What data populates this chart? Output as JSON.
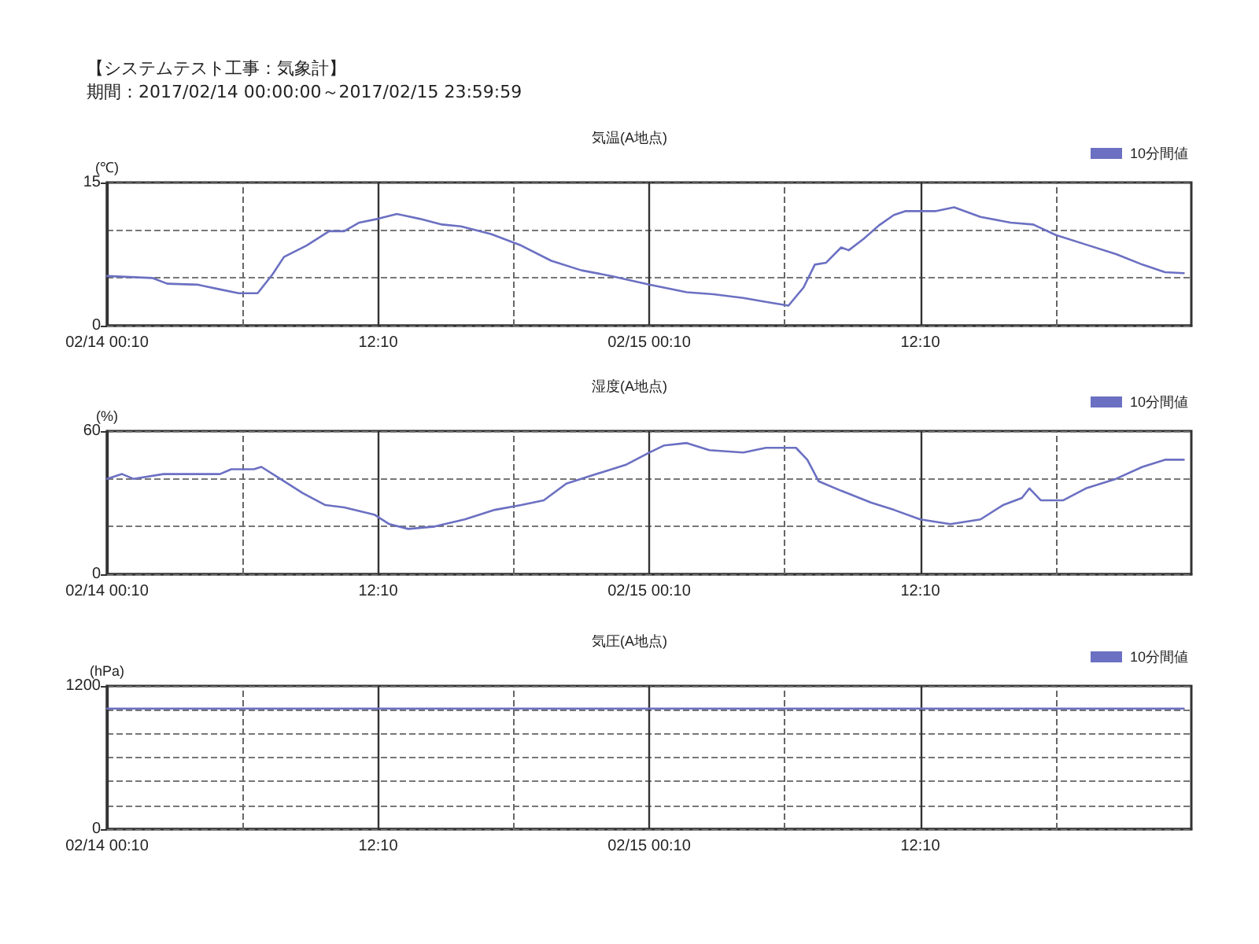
{
  "chart_data": [
    {
      "type": "line",
      "title": "気温(A地点)",
      "ylabel": "(℃)",
      "annotations": [
        "【システムテスト工事：気象計】",
        "期間：2017/02/14 00:00:00～2017/02/15 23:59:59"
      ],
      "xlim": [
        "2017-02-14T00:10",
        "2017-02-16T00:10"
      ],
      "xticks": [
        {
          "value": "2017-02-14T00:10",
          "label": "02/14 00:10"
        },
        {
          "value": "2017-02-14T06:10",
          "label": null
        },
        {
          "value": "2017-02-14T12:10",
          "label": "12:10"
        },
        {
          "value": "2017-02-14T18:10",
          "label": null
        },
        {
          "value": "2017-02-15T00:10",
          "label": "02/15 00:10"
        },
        {
          "value": "2017-02-15T06:10",
          "label": null
        },
        {
          "value": "2017-02-15T12:10",
          "label": "12:10"
        },
        {
          "value": "2017-02-15T18:10",
          "label": null
        }
      ],
      "ylim": [
        0,
        15
      ],
      "yticks": [
        0,
        {
          "value": 5,
          "label": null
        },
        {
          "value": 10,
          "label": null
        },
        15
      ],
      "grid": true,
      "legend": "top right",
      "marker": "none",
      "line_style": "solid",
      "series": [
        {
          "name": "10分間値",
          "color": "#6b70c2",
          "x": [
            "2017-02-14T00:10",
            "2017-02-14T02:10",
            "2017-02-14T02:50",
            "2017-02-14T04:10",
            "2017-02-14T05:10",
            "2017-02-14T06:00",
            "2017-02-14T06:50",
            "2017-02-14T07:30",
            "2017-02-14T08:00",
            "2017-02-14T09:00",
            "2017-02-14T10:00",
            "2017-02-14T10:40",
            "2017-02-14T11:20",
            "2017-02-14T12:10",
            "2017-02-14T13:00",
            "2017-02-14T14:00",
            "2017-02-14T15:00",
            "2017-02-14T15:50",
            "2017-02-14T17:10",
            "2017-02-14T18:30",
            "2017-02-14T19:50",
            "2017-02-14T21:10",
            "2017-02-14T22:30",
            "2017-02-15T00:10",
            "2017-02-15T01:50",
            "2017-02-15T03:00",
            "2017-02-15T04:20",
            "2017-02-15T05:20",
            "2017-02-15T06:20",
            "2017-02-15T07:00",
            "2017-02-15T07:30",
            "2017-02-15T08:00",
            "2017-02-15T08:40",
            "2017-02-15T09:00",
            "2017-02-15T09:40",
            "2017-02-15T10:20",
            "2017-02-15T11:00",
            "2017-02-15T11:30",
            "2017-02-15T12:50",
            "2017-02-15T13:40",
            "2017-02-15T14:50",
            "2017-02-15T16:10",
            "2017-02-15T17:10",
            "2017-02-15T18:10",
            "2017-02-15T19:30",
            "2017-02-15T20:50",
            "2017-02-15T22:00",
            "2017-02-15T23:00",
            "2017-02-15T23:50"
          ],
          "values": [
            5.2,
            5.0,
            4.4,
            4.3,
            3.8,
            3.4,
            3.4,
            5.4,
            7.2,
            8.4,
            9.9,
            9.9,
            10.8,
            11.2,
            11.7,
            11.2,
            10.6,
            10.4,
            9.6,
            8.4,
            6.8,
            5.8,
            5.2,
            4.3,
            3.5,
            3.3,
            2.9,
            2.5,
            2.1,
            4.0,
            6.4,
            6.6,
            8.2,
            7.9,
            9.1,
            10.5,
            11.6,
            12.0,
            12.0,
            12.4,
            11.4,
            10.8,
            10.6,
            9.5,
            8.5,
            7.5,
            6.4,
            5.6,
            5.5
          ]
        }
      ]
    },
    {
      "type": "line",
      "title": "湿度(A地点)",
      "ylabel": "(%)",
      "xlim": [
        "2017-02-14T00:10",
        "2017-02-16T00:10"
      ],
      "xticks": [
        {
          "value": "2017-02-14T00:10",
          "label": "02/14 00:10"
        },
        {
          "value": "2017-02-14T06:10",
          "label": null
        },
        {
          "value": "2017-02-14T12:10",
          "label": "12:10"
        },
        {
          "value": "2017-02-14T18:10",
          "label": null
        },
        {
          "value": "2017-02-15T00:10",
          "label": "02/15 00:10"
        },
        {
          "value": "2017-02-15T06:10",
          "label": null
        },
        {
          "value": "2017-02-15T12:10",
          "label": "12:10"
        },
        {
          "value": "2017-02-15T18:10",
          "label": null
        }
      ],
      "ylim": [
        0,
        60
      ],
      "yticks": [
        0,
        {
          "value": 20,
          "label": null
        },
        {
          "value": 40,
          "label": null
        },
        60
      ],
      "grid": true,
      "legend": "top right",
      "marker": "none",
      "line_style": "solid",
      "series": [
        {
          "name": "10分間値",
          "color": "#6b70c2",
          "x": [
            "2017-02-14T00:10",
            "2017-02-14T00:50",
            "2017-02-14T01:20",
            "2017-02-14T02:40",
            "2017-02-14T05:10",
            "2017-02-14T05:40",
            "2017-02-14T06:40",
            "2017-02-14T07:00",
            "2017-02-14T07:50",
            "2017-02-14T08:50",
            "2017-02-14T09:50",
            "2017-02-14T10:40",
            "2017-02-14T12:00",
            "2017-02-14T12:40",
            "2017-02-14T13:30",
            "2017-02-14T14:40",
            "2017-02-14T16:00",
            "2017-02-14T17:20",
            "2017-02-14T18:30",
            "2017-02-14T19:30",
            "2017-02-14T20:30",
            "2017-02-14T21:50",
            "2017-02-14T23:10",
            "2017-02-15T00:10",
            "2017-02-15T00:50",
            "2017-02-15T01:50",
            "2017-02-15T02:50",
            "2017-02-15T04:20",
            "2017-02-15T05:20",
            "2017-02-15T06:40",
            "2017-02-15T07:10",
            "2017-02-15T07:40",
            "2017-02-15T08:40",
            "2017-02-15T10:00",
            "2017-02-15T11:00",
            "2017-02-15T12:10",
            "2017-02-15T13:30",
            "2017-02-15T14:50",
            "2017-02-15T15:50",
            "2017-02-15T16:40",
            "2017-02-15T17:00",
            "2017-02-15T17:30",
            "2017-02-15T18:30",
            "2017-02-15T19:30",
            "2017-02-15T20:50",
            "2017-02-15T22:00",
            "2017-02-15T23:00",
            "2017-02-15T23:50"
          ],
          "values": [
            40,
            42,
            40,
            42,
            42,
            44,
            44,
            45,
            40,
            34,
            29,
            28,
            25,
            21,
            19,
            20,
            23,
            27,
            29,
            31,
            38,
            42,
            46,
            51,
            54,
            55,
            52,
            51,
            53,
            53,
            48,
            39,
            35,
            30,
            27,
            23,
            21,
            23,
            29,
            32,
            36,
            31,
            31,
            36,
            40,
            45,
            48,
            48
          ]
        }
      ]
    },
    {
      "type": "line",
      "title": "気圧(A地点)",
      "ylabel": "(hPa)",
      "xlim": [
        "2017-02-14T00:10",
        "2017-02-16T00:10"
      ],
      "xticks": [
        {
          "value": "2017-02-14T00:10",
          "label": "02/14 00:10"
        },
        {
          "value": "2017-02-14T06:10",
          "label": null
        },
        {
          "value": "2017-02-14T12:10",
          "label": "12:10"
        },
        {
          "value": "2017-02-14T18:10",
          "label": null
        },
        {
          "value": "2017-02-15T00:10",
          "label": "02/15 00:10"
        },
        {
          "value": "2017-02-15T06:10",
          "label": null
        },
        {
          "value": "2017-02-15T12:10",
          "label": "12:10"
        },
        {
          "value": "2017-02-15T18:10",
          "label": null
        }
      ],
      "ylim": [
        0,
        1200
      ],
      "yticks": [
        0,
        {
          "value": 200,
          "label": null
        },
        {
          "value": 400,
          "label": null
        },
        {
          "value": 600,
          "label": null
        },
        {
          "value": 800,
          "label": null
        },
        {
          "value": 1000,
          "label": null
        },
        1200
      ],
      "grid": true,
      "legend": "top right",
      "marker": "none",
      "line_style": "solid",
      "series": [
        {
          "name": "10分間値",
          "color": "#6b70c2",
          "x": [
            "2017-02-14T00:10",
            "2017-02-14T12:10",
            "2017-02-15T00:10",
            "2017-02-15T12:10",
            "2017-02-15T23:50"
          ],
          "values": [
            1010,
            1010,
            1010,
            1010,
            1010
          ]
        }
      ]
    }
  ]
}
